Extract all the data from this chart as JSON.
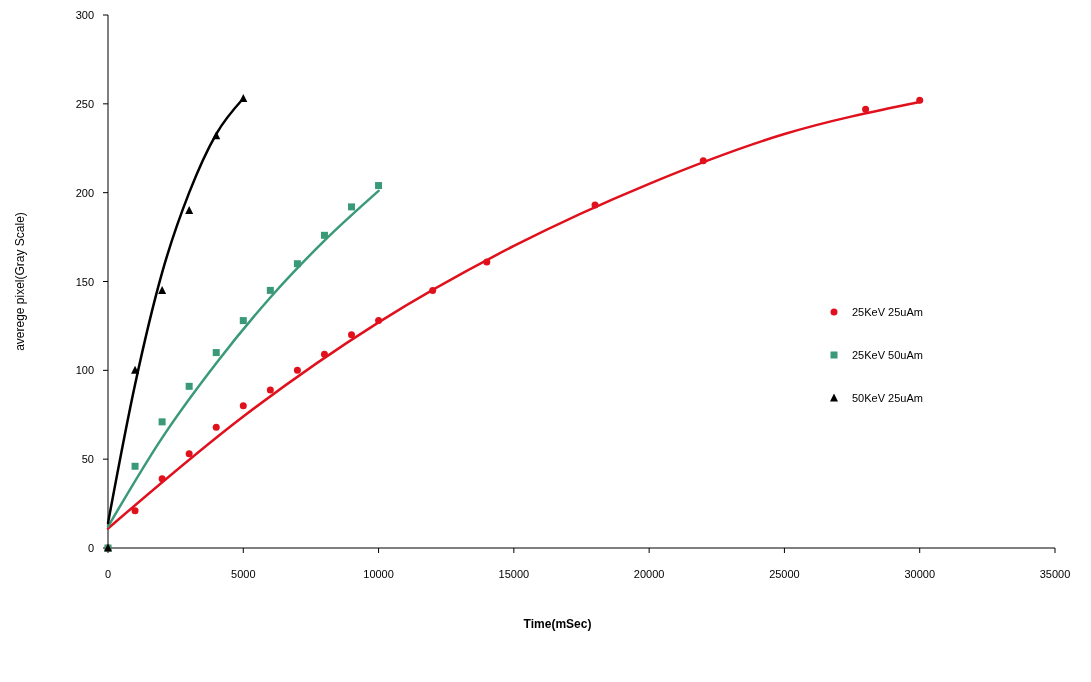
{
  "chart_data": {
    "type": "scatter",
    "xlabel": "Time(mSec)",
    "ylabel": "averege pixel(Gray Scale)",
    "xlim": [
      0,
      35000
    ],
    "xticks": [
      0,
      5000,
      10000,
      15000,
      20000,
      25000,
      30000,
      35000
    ],
    "ylim": [
      0,
      300
    ],
    "yticks": [
      0,
      50,
      100,
      150,
      200,
      250,
      300
    ],
    "grid": false,
    "legend": "right",
    "series": [
      {
        "name": "25KeV 25uAm",
        "marker": "circle",
        "color": "#e0101c",
        "x": [
          0,
          1000,
          2000,
          3000,
          4000,
          5000,
          6000,
          7000,
          8000,
          9000,
          10000,
          12000,
          14000,
          18000,
          22000,
          28000,
          30000
        ],
        "values": [
          0,
          21,
          39,
          53,
          68,
          80,
          89,
          100,
          109,
          120,
          128,
          145,
          161,
          193,
          218,
          247,
          252
        ]
      },
      {
        "name": "25KeV 50uAm",
        "marker": "square",
        "color": "#3a9a78",
        "x": [
          0,
          1000,
          2000,
          3000,
          4000,
          5000,
          6000,
          7000,
          8000,
          9000,
          10000
        ],
        "values": [
          0,
          46,
          71,
          91,
          110,
          128,
          145,
          160,
          176,
          192,
          204
        ]
      },
      {
        "name": "50KeV 25uAm",
        "marker": "triangle",
        "color": "#000000",
        "x": [
          0,
          1000,
          2000,
          3000,
          4000,
          5000
        ],
        "values": [
          0,
          100,
          145,
          190,
          232,
          253
        ]
      },
      {
        "type": "line",
        "marker": "none",
        "color": "#e0101c",
        "x": [
          0,
          5000,
          10000,
          15000,
          20000,
          25000,
          30000
        ],
        "values": [
          11,
          74,
          127,
          170,
          205,
          233,
          251
        ]
      },
      {
        "type": "line",
        "marker": "none",
        "color": "#3a9a78",
        "x": [
          0,
          2000,
          4000,
          6000,
          8000,
          10000
        ],
        "values": [
          12,
          62,
          104,
          141,
          173,
          201
        ]
      },
      {
        "type": "line",
        "marker": "none",
        "color": "#000000",
        "x": [
          0,
          1000,
          2000,
          3000,
          4000,
          5000
        ],
        "values": [
          14,
          92,
          155,
          200,
          233,
          253
        ]
      }
    ]
  }
}
